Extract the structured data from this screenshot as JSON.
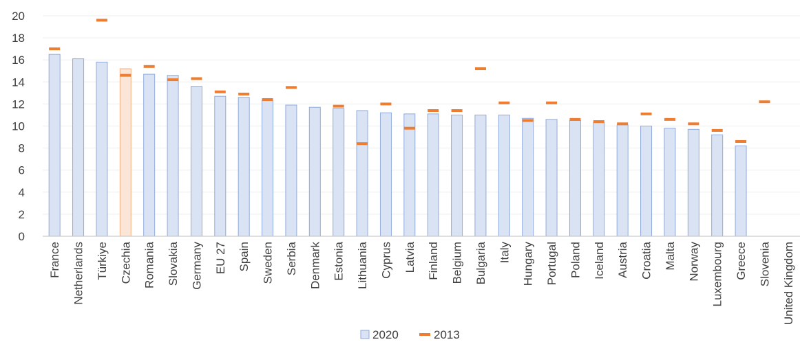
{
  "chart_data": {
    "type": "bar",
    "title": "",
    "xlabel": "",
    "ylabel": "",
    "ylim": [
      0,
      20
    ],
    "yticks": [
      0,
      2,
      4,
      6,
      8,
      10,
      12,
      14,
      16,
      18,
      20
    ],
    "grid": true,
    "legend_position": "bottom",
    "categories": [
      "France",
      "Netherlands",
      "Türkiye",
      "Czechia",
      "Romania",
      "Slovakia",
      "Germany",
      "EU 27",
      "Spain",
      "Sweden",
      "Serbia",
      "Denmark",
      "Estonia",
      "Lithuania",
      "Cyprus",
      "Latvia",
      "Finland",
      "Belgium",
      "Bulgaria",
      "Italy",
      "Hungary",
      "Portugal",
      "Poland",
      "Iceland",
      "Austria",
      "Croatia",
      "Malta",
      "Norway",
      "Luxembourg",
      "Greece",
      "Slovenia",
      "United Kingdom"
    ],
    "series": [
      {
        "name": "2020",
        "kind": "bar",
        "color": "#dae3f3",
        "edge_color": "#8faadc",
        "highlight_category": "Czechia",
        "highlight_color": "#fbe5d6",
        "highlight_edge_color": "#f4b183",
        "values": [
          16.5,
          16.1,
          15.8,
          15.2,
          14.7,
          14.6,
          13.6,
          12.7,
          12.6,
          12.3,
          11.9,
          11.7,
          11.6,
          11.4,
          11.2,
          11.1,
          11.1,
          11.0,
          11.0,
          11.0,
          10.7,
          10.6,
          10.5,
          10.3,
          10.1,
          10.0,
          9.8,
          9.7,
          9.2,
          8.2,
          null,
          null
        ]
      },
      {
        "name": "2013",
        "kind": "marker",
        "color": "#ed7d31",
        "values": [
          17.0,
          null,
          19.6,
          14.6,
          15.4,
          14.2,
          14.3,
          13.1,
          12.9,
          12.4,
          13.5,
          null,
          11.8,
          8.4,
          12.0,
          9.8,
          11.4,
          11.4,
          15.2,
          12.1,
          10.5,
          12.1,
          10.6,
          10.4,
          10.2,
          11.1,
          10.6,
          10.2,
          9.6,
          8.6,
          12.2,
          null
        ]
      }
    ]
  }
}
